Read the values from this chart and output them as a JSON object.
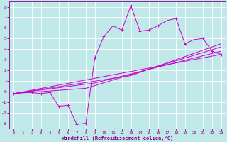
{
  "xlabel": "Windchill (Refroidissement éolien,°C)",
  "xlim": [
    -0.5,
    23.5
  ],
  "ylim": [
    -3.5,
    8.5
  ],
  "yticks": [
    -3,
    -2,
    -1,
    0,
    1,
    2,
    3,
    4,
    5,
    6,
    7,
    8
  ],
  "xticks": [
    0,
    1,
    2,
    3,
    4,
    5,
    6,
    7,
    8,
    9,
    10,
    11,
    12,
    13,
    14,
    15,
    16,
    17,
    18,
    19,
    20,
    21,
    22,
    23
  ],
  "bg_color": "#c0e8e8",
  "grid_color": "#ffffff",
  "line_color": "#cc00cc",
  "series1_x": [
    0,
    1,
    2,
    3,
    4,
    5,
    6,
    7,
    8,
    9,
    10,
    11,
    12,
    13,
    14,
    15,
    16,
    17,
    18,
    19,
    20,
    21,
    22,
    23
  ],
  "series1_y": [
    -0.2,
    -0.1,
    -0.1,
    -0.2,
    -0.1,
    -1.4,
    -1.3,
    -3.1,
    -3.0,
    3.2,
    5.2,
    6.2,
    5.8,
    8.1,
    5.7,
    5.8,
    6.2,
    6.7,
    6.9,
    4.5,
    4.9,
    5.0,
    3.8,
    3.5
  ],
  "series2_x": [
    0,
    23
  ],
  "series2_y": [
    -0.2,
    3.5
  ],
  "series3_x": [
    0,
    8,
    23
  ],
  "series3_y": [
    -0.2,
    0.3,
    4.2
  ],
  "series4_x": [
    0,
    9,
    23
  ],
  "series4_y": [
    -0.2,
    0.8,
    3.8
  ],
  "series5_x": [
    0,
    13,
    23
  ],
  "series5_y": [
    -0.2,
    1.5,
    4.5
  ]
}
